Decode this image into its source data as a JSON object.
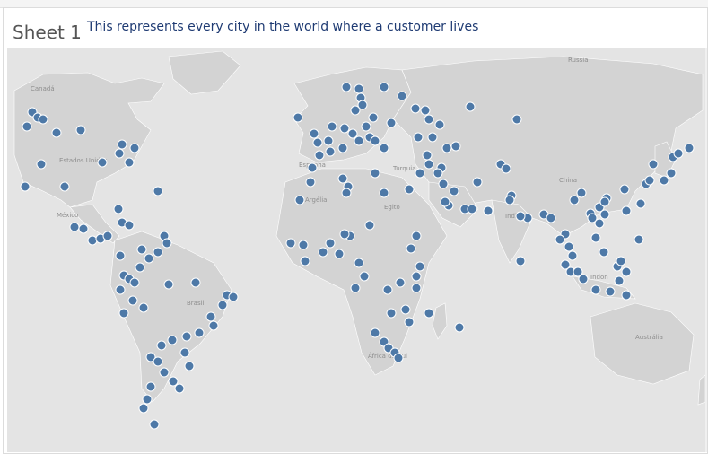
{
  "sheet": {
    "title": "Sheet 1",
    "subtitle": "This represents every city in the world where a customer lives"
  },
  "map": {
    "land_color": "#d3d3d3",
    "water_color": "#e4e4e4",
    "mark_color": "#4e79a7",
    "mark_stroke": "#ffffff",
    "country_labels": [
      "Canadá",
      "Estados Unidos",
      "México",
      "Brasil",
      "Russia",
      "China",
      "India",
      "Turquia",
      "Argélia",
      "Egito",
      "Austrália",
      "Indon",
      "África do Sul",
      "Espanha"
    ]
  }
}
